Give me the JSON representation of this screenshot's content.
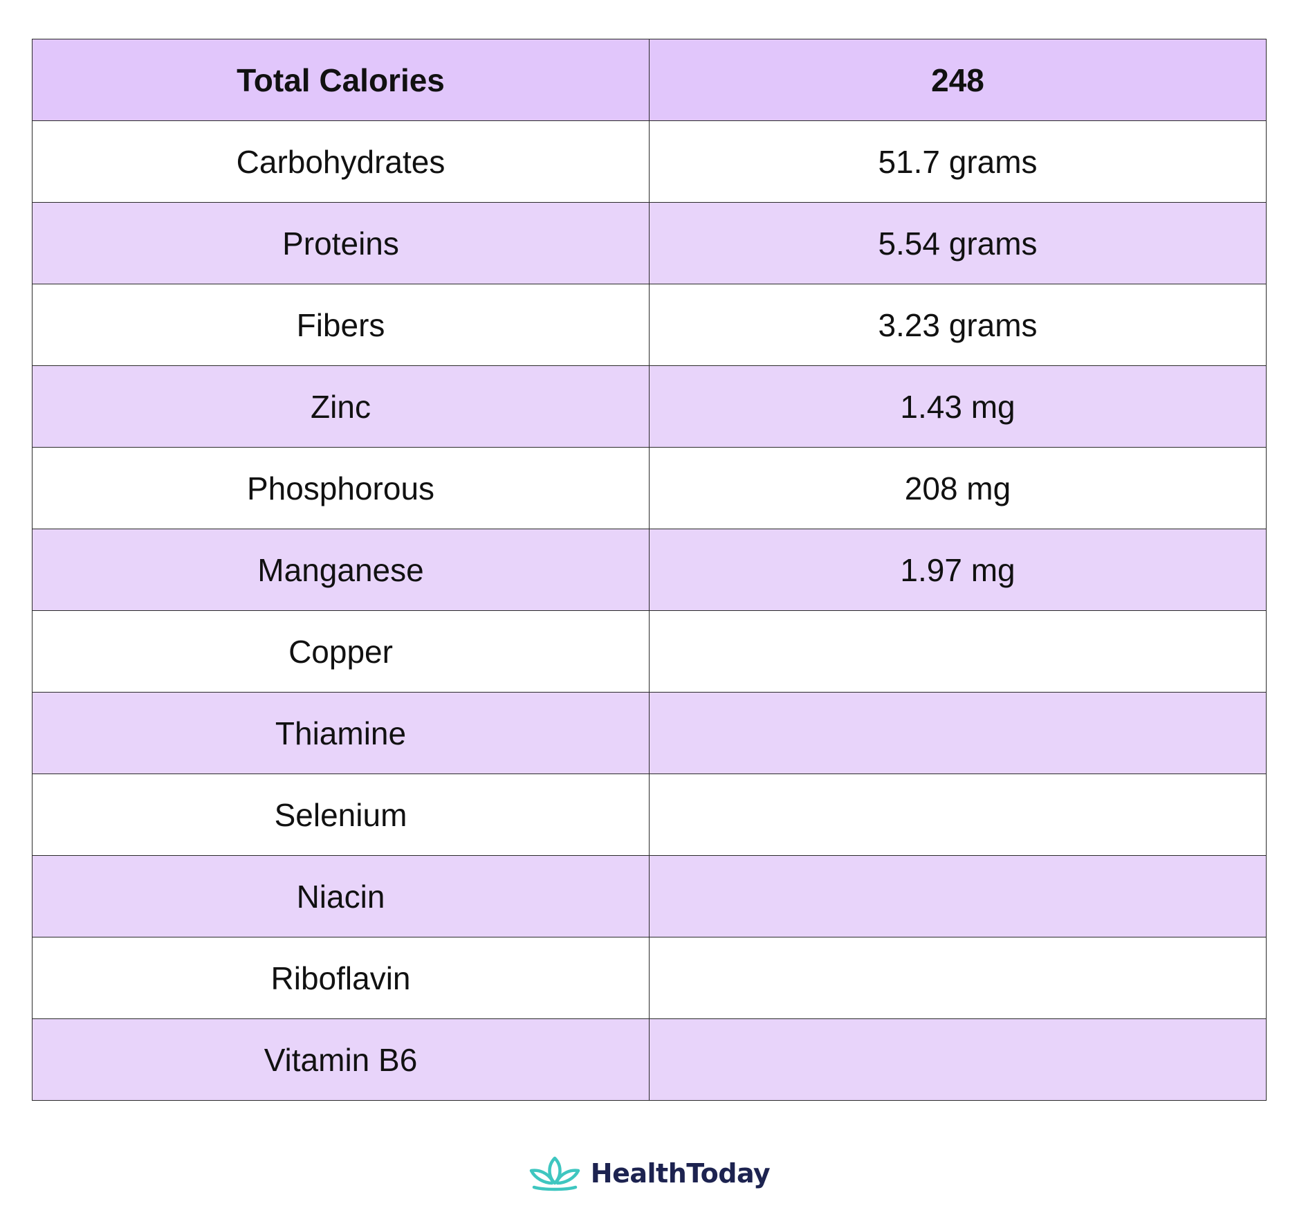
{
  "table": {
    "header": {
      "nutrient": "Total Calories",
      "value": "248"
    },
    "rows": [
      {
        "nutrient": "Carbohydrates",
        "value": "51.7 grams"
      },
      {
        "nutrient": "Proteins",
        "value": "5.54 grams"
      },
      {
        "nutrient": "Fibers",
        "value": "3.23 grams"
      },
      {
        "nutrient": "Zinc",
        "value": "1.43 mg"
      },
      {
        "nutrient": "Phosphorous",
        "value": "208 mg"
      },
      {
        "nutrient": "Manganese",
        "value": "1.97 mg"
      },
      {
        "nutrient": "Copper",
        "value": ""
      },
      {
        "nutrient": "Thiamine",
        "value": ""
      },
      {
        "nutrient": "Selenium",
        "value": ""
      },
      {
        "nutrient": "Niacin",
        "value": ""
      },
      {
        "nutrient": "Riboflavin",
        "value": ""
      },
      {
        "nutrient": "Vitamin B6",
        "value": ""
      }
    ]
  },
  "footer": {
    "brand_name": "HealthToday",
    "logo_icon": "lotus-icon"
  },
  "colors": {
    "header_bg": "#e1c6fb",
    "row_alt_bg": "#e8d4fa",
    "logo_teal": "#3ec6c0",
    "brand_navy": "#1d2350"
  }
}
